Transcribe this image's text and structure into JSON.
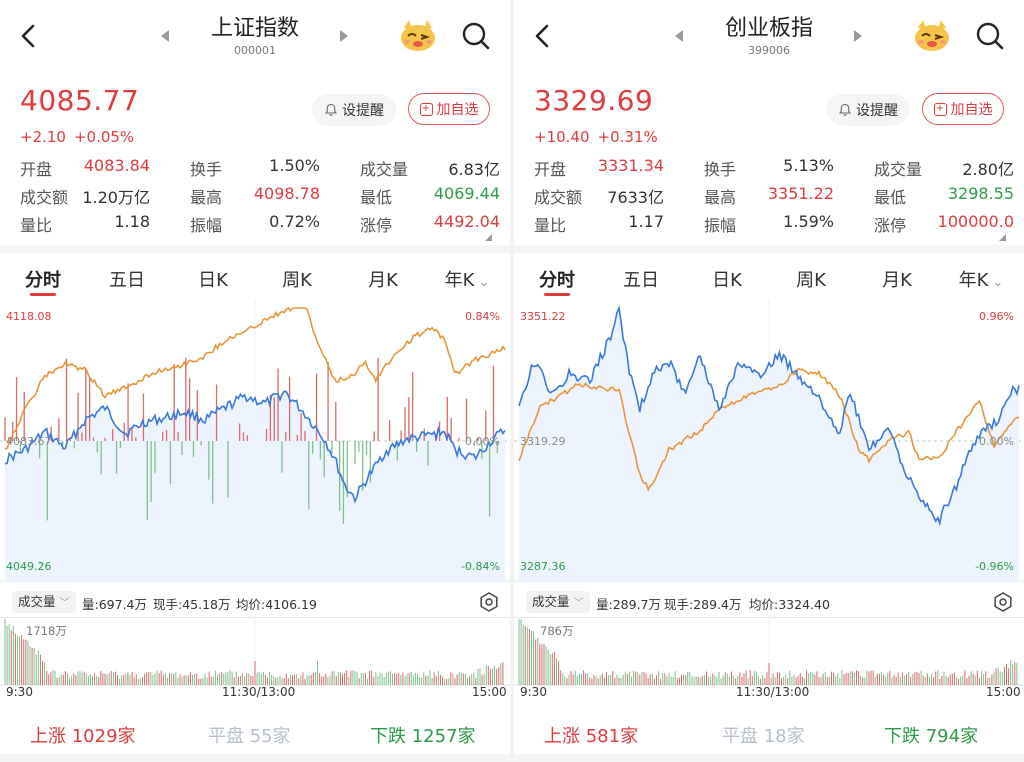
{
  "panels": [
    {
      "title": "上证指数",
      "code": "000001",
      "price": "4085.77",
      "change": "+2.10",
      "change_pct": "+0.05%",
      "alert_label": "设提醒",
      "add_label": "加自选",
      "stats": [
        [
          {
            "label": "开盘",
            "value": "4083.84",
            "color": "#e03c3c"
          },
          {
            "label": "换手",
            "value": "1.50%",
            "color": "#333333"
          },
          {
            "label": "成交量",
            "value": "6.83亿",
            "color": "#333333"
          }
        ],
        [
          {
            "label": "成交额",
            "value": "1.20万亿",
            "color": "#333333"
          },
          {
            "label": "最高",
            "value": "4098.78",
            "color": "#e03c3c"
          },
          {
            "label": "最低",
            "value": "4069.44",
            "color": "#2e9a4a"
          }
        ],
        [
          {
            "label": "量比",
            "value": "1.18",
            "color": "#333333"
          },
          {
            "label": "振幅",
            "value": "0.72%",
            "color": "#333333"
          },
          {
            "label": "涨停",
            "value": "4492.04",
            "color": "#e03c3c"
          }
        ]
      ],
      "tabs": [
        "分时",
        "五日",
        "日K",
        "周K",
        "月K",
        "年K"
      ],
      "active_tab": 0,
      "chart": {
        "y_max": "4118.08",
        "y_max_pct": "0.84%",
        "y_mid": "4083.67",
        "y_mid_pct": "0.00%",
        "y_min": "4049.26",
        "y_min_pct": "-0.84%"
      },
      "volume": {
        "selector": "成交量",
        "amount": "量:697.4万",
        "current": "现手:45.18万",
        "avg": "均价:4106.19",
        "max_label": "1718万"
      },
      "times": [
        "9:30",
        "11:30/13:00",
        "15:00"
      ],
      "breadth": {
        "up_label": "上涨",
        "up": "1029家",
        "flat_label": "平盘",
        "flat": "55家",
        "down_label": "下跌",
        "down": "1257家"
      }
    },
    {
      "title": "创业板指",
      "code": "399006",
      "price": "3329.69",
      "change": "+10.40",
      "change_pct": "+0.31%",
      "alert_label": "设提醒",
      "add_label": "加自选",
      "stats": [
        [
          {
            "label": "开盘",
            "value": "3331.34",
            "color": "#e03c3c"
          },
          {
            "label": "换手",
            "value": "5.13%",
            "color": "#333333"
          },
          {
            "label": "成交量",
            "value": "2.80亿",
            "color": "#333333"
          }
        ],
        [
          {
            "label": "成交额",
            "value": "7633亿",
            "color": "#333333"
          },
          {
            "label": "最高",
            "value": "3351.22",
            "color": "#e03c3c"
          },
          {
            "label": "最低",
            "value": "3298.55",
            "color": "#2e9a4a"
          }
        ],
        [
          {
            "label": "量比",
            "value": "1.17",
            "color": "#333333"
          },
          {
            "label": "振幅",
            "value": "1.59%",
            "color": "#333333"
          },
          {
            "label": "涨停",
            "value": "100000.0",
            "color": "#e03c3c"
          }
        ]
      ],
      "tabs": [
        "分时",
        "五日",
        "日K",
        "周K",
        "月K",
        "年K"
      ],
      "active_tab": 0,
      "chart": {
        "y_max": "3351.22",
        "y_max_pct": "0.96%",
        "y_mid": "3319.29",
        "y_mid_pct": "0.00%",
        "y_min": "3287.36",
        "y_min_pct": "-0.96%"
      },
      "volume": {
        "selector": "成交量",
        "amount": "量:289.7万",
        "current": "现手:289.4万",
        "avg": "均价:3324.40",
        "max_label": "786万"
      },
      "times": [
        "9:30",
        "11:30/13:00",
        "15:00"
      ],
      "breadth": {
        "up_label": "上涨",
        "up": "581家",
        "flat_label": "平盘",
        "flat": "18家",
        "down_label": "下跌",
        "down": "794家"
      }
    }
  ],
  "colors": {
    "up": "#e03c3c",
    "down": "#2e9a4a",
    "price_line": "#3b78d8",
    "avg_line": "#e8963a"
  }
}
